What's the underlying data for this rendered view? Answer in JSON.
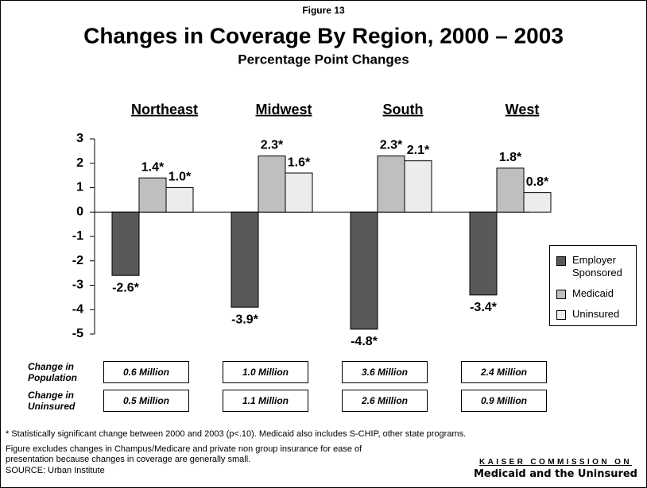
{
  "chart_data": {
    "type": "bar",
    "figure_label": "Figure 13",
    "title": "Changes in Coverage By Region,  2000 – 2003",
    "subtitle": "Percentage Point Changes",
    "categories": [
      "Northeast",
      "Midwest",
      "South",
      "West"
    ],
    "series": [
      {
        "name": "Employer Sponsored",
        "color": "#595959",
        "values": [
          -2.6,
          -3.9,
          -4.8,
          -3.4
        ],
        "value_labels": [
          "-2.6*",
          "-3.9*",
          "-4.8*",
          "-3.4*"
        ]
      },
      {
        "name": "Medicaid",
        "color": "#bfbfbf",
        "values": [
          1.4,
          2.3,
          2.3,
          1.8
        ],
        "value_labels": [
          "1.4*",
          "2.3*",
          "2.3*",
          "1.8*"
        ]
      },
      {
        "name": "Uninsured",
        "color": "#ececec",
        "values": [
          1.0,
          1.6,
          2.1,
          0.8
        ],
        "value_labels": [
          "1.0*",
          "1.6*",
          "2.1*",
          "0.8*"
        ]
      }
    ],
    "ylim": [
      -5,
      3
    ],
    "yticks": [
      3,
      2,
      1,
      0,
      -1,
      -2,
      -3,
      -4,
      -5
    ],
    "grid": false,
    "legend": "right",
    "table": {
      "row_labels": [
        "Change in Population",
        "Change in Uninsured"
      ],
      "rows": [
        [
          "0.6 Million",
          "1.0 Million",
          "3.6 Million",
          "2.4 Million"
        ],
        [
          "0.5 Million",
          "1.1 Million",
          "2.6 Million",
          "0.9 Million"
        ]
      ]
    },
    "footnotes": [
      "* Statistically significant change between 2000 and 2003 (p<.10).  Medicaid also includes S-CHIP, other state programs.",
      "Figure excludes changes in Champus/Medicare and private non group insurance for ease of presentation because changes in coverage are generally small.",
      "SOURCE:  Urban Institute"
    ],
    "logo": {
      "line1": "KAISER COMMISSION ON",
      "line2": "Medicaid and the Uninsured"
    }
  }
}
